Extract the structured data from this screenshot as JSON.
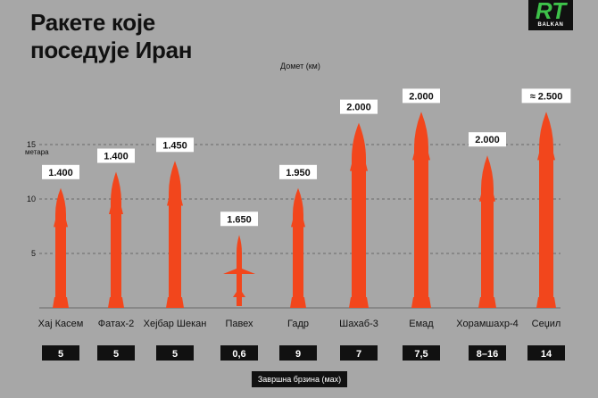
{
  "header": {
    "title_line1": "Ракете које",
    "title_line2": "поседује Иран",
    "logo_text": "RT",
    "logo_sub": "BALKAN"
  },
  "labels": {
    "range_title": "Домет (км)",
    "axis_unit": "метара",
    "speed_title": "Завршна брзина (мах)"
  },
  "colors": {
    "missile": "#f2461c",
    "background": "#a7a7a7",
    "box": "#111111",
    "grid": "#555555"
  },
  "chart_data": {
    "type": "bar",
    "title": "Ракете које поседује Иран",
    "ylabel": "метара",
    "ylim": [
      0,
      15
    ],
    "yticks": [
      5,
      10,
      15
    ],
    "grid": true,
    "categories": [
      "Хај Касем",
      "Фатах-2",
      "Хејбар Шекан",
      "Павех",
      "Гадр",
      "Шахаб-3",
      "Емад",
      "Хорамшахр-4",
      "Сеџил"
    ],
    "length_m": [
      11.0,
      12.5,
      13.5,
      6.7,
      11.0,
      17.0,
      18.0,
      14.0,
      18.0
    ],
    "range_labels": [
      "1.400",
      "1.400",
      "1.450",
      "1.650",
      "1.950",
      "2.000",
      "2.000",
      "2.000",
      "≈ 2.500"
    ],
    "speed_labels": [
      "5",
      "5",
      "5",
      "0,6",
      "9",
      "7",
      "7,5",
      "8–16",
      "14"
    ],
    "icons": [
      "missile-icon",
      "missile-icon",
      "missile-icon",
      "cruise-missile-icon",
      "missile-icon",
      "missile-icon",
      "missile-icon",
      "missile-icon",
      "missile-icon"
    ]
  }
}
